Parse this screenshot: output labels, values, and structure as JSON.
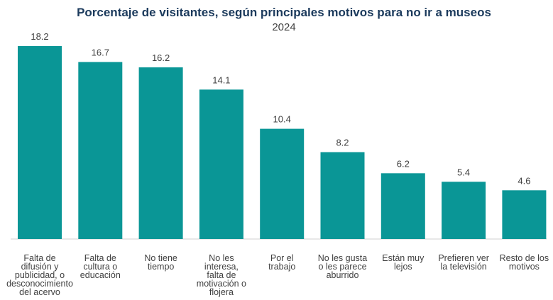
{
  "chart_data": {
    "type": "bar",
    "title": "Porcentaje de visitantes, según principales motivos para no ir a museos",
    "subtitle": "2024",
    "xlabel": "",
    "ylabel": "",
    "ylim": [
      0,
      18.2
    ],
    "grid": false,
    "legend": "none",
    "categories": [
      [
        "Falta de",
        "difusión y",
        "publicidad, o",
        "desconocimiento",
        "del acervo"
      ],
      [
        "Falta de",
        "cultura o",
        "educación"
      ],
      [
        "No tiene",
        "tiempo"
      ],
      [
        "No les",
        "interesa,",
        "falta de",
        "motivación o",
        "flojera"
      ],
      [
        "Por el",
        "trabajo"
      ],
      [
        "No les gusta",
        "o les parece",
        "aburrido"
      ],
      [
        "Están muy",
        "lejos"
      ],
      [
        "Prefieren ver",
        "la televisión"
      ],
      [
        "Resto de los",
        "motivos"
      ]
    ],
    "values": [
      18.2,
      16.7,
      16.2,
      14.1,
      10.4,
      8.2,
      6.2,
      5.4,
      4.6
    ],
    "value_labels": [
      "18.2",
      "16.7",
      "16.2",
      "14.1",
      "10.4",
      "8.2",
      "6.2",
      "5.4",
      "4.6"
    ]
  },
  "colors": {
    "bar": "#0A9696",
    "title": "#1B3A5C",
    "text": "#404040",
    "baseline": "#D0D0D0"
  }
}
